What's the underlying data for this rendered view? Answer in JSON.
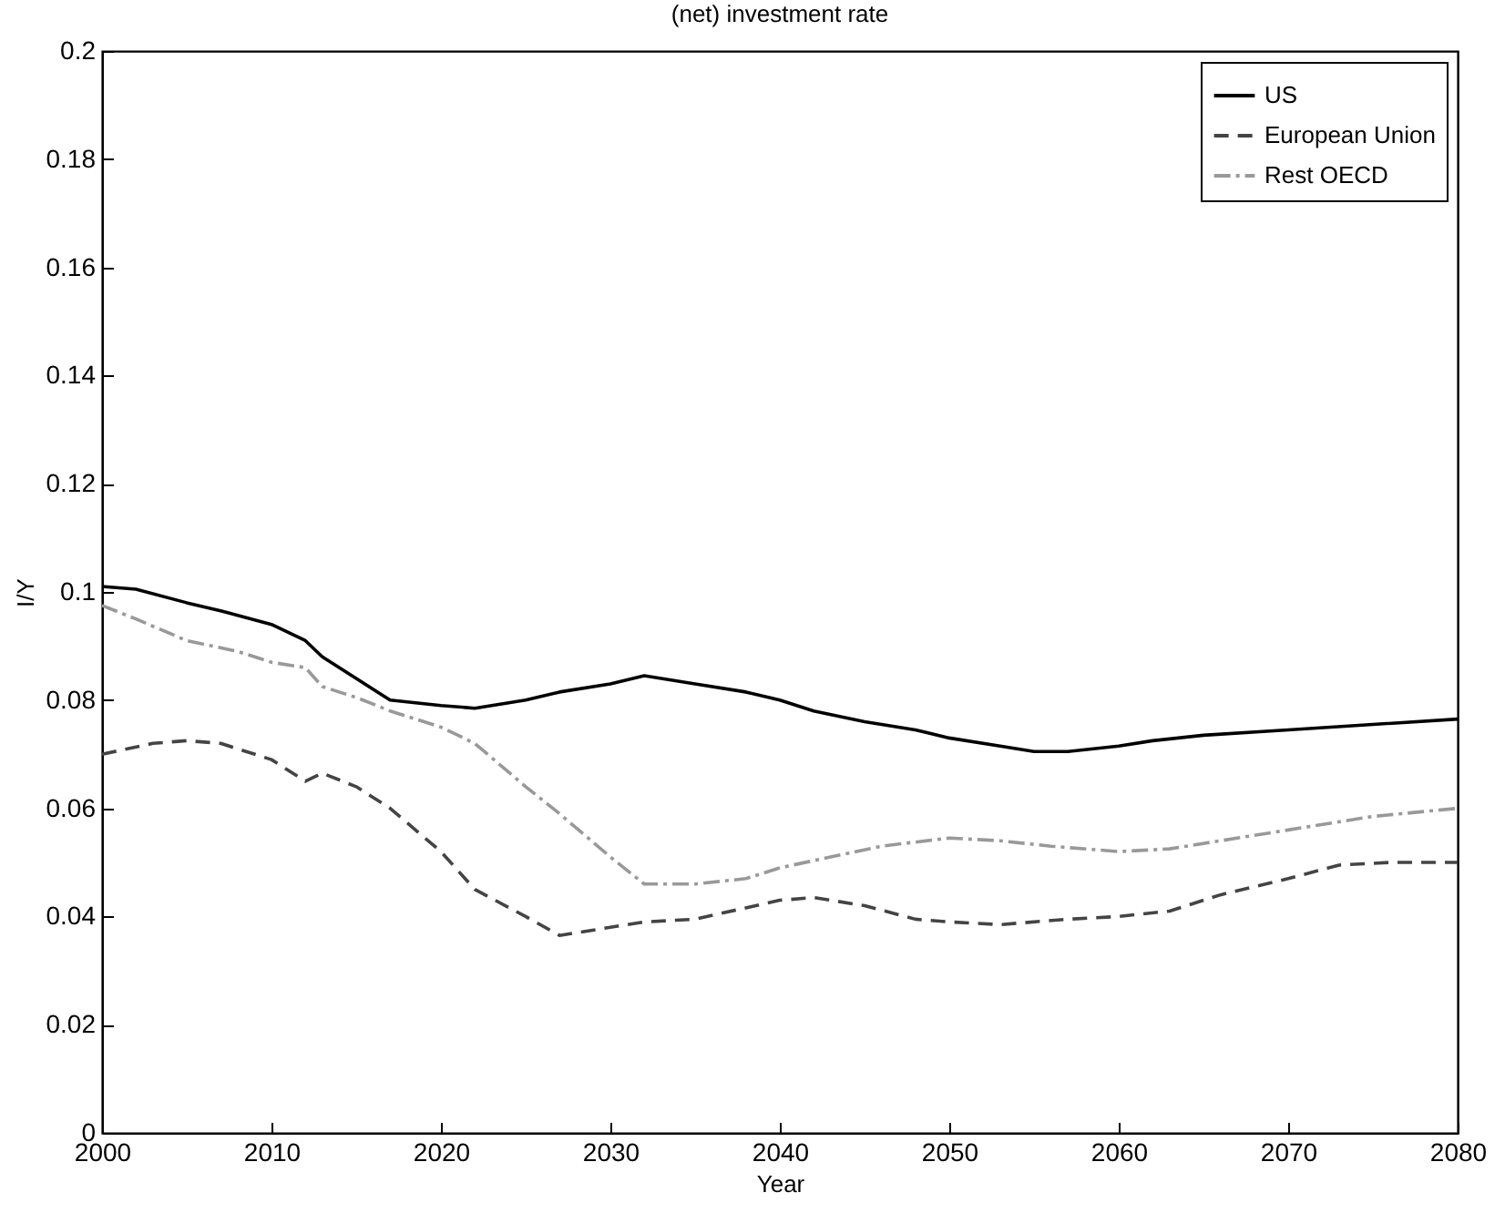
{
  "chart_data": {
    "type": "line",
    "title": "(net) investment rate",
    "xlabel": "Year",
    "ylabel": "I/Y",
    "xlim": [
      2000,
      2080
    ],
    "xticks": [
      2000,
      2010,
      2020,
      2030,
      2040,
      2050,
      2060,
      2070,
      2080
    ],
    "ylim": [
      0,
      0.2
    ],
    "yticks": [
      0,
      0.02,
      0.04,
      0.06,
      0.08,
      0.1,
      0.12,
      0.14,
      0.16,
      0.18,
      0.2
    ],
    "grid": false,
    "legend": "top right",
    "series": [
      {
        "name": "US",
        "color": "#000000",
        "line_style": "solid",
        "x": [
          2000,
          2002,
          2005,
          2007,
          2010,
          2012,
          2013,
          2015,
          2017,
          2020,
          2022,
          2025,
          2027,
          2030,
          2032,
          2035,
          2038,
          2040,
          2042,
          2045,
          2048,
          2050,
          2053,
          2055,
          2057,
          2060,
          2062,
          2065,
          2070,
          2075,
          2080
        ],
        "values": [
          0.101,
          0.1005,
          0.098,
          0.0965,
          0.094,
          0.091,
          0.088,
          0.084,
          0.08,
          0.079,
          0.0785,
          0.08,
          0.0815,
          0.083,
          0.0845,
          0.083,
          0.0815,
          0.08,
          0.078,
          0.076,
          0.0745,
          0.073,
          0.0715,
          0.0705,
          0.0705,
          0.0715,
          0.0725,
          0.0735,
          0.0745,
          0.0755,
          0.0765
        ]
      },
      {
        "name": "European Union",
        "color": "#444444",
        "line_style": "dashed",
        "x": [
          2000,
          2003,
          2005,
          2007,
          2010,
          2012,
          2013,
          2015,
          2017,
          2020,
          2022,
          2025,
          2027,
          2030,
          2032,
          2035,
          2040,
          2042,
          2045,
          2048,
          2050,
          2053,
          2057,
          2060,
          2063,
          2066,
          2070,
          2073,
          2076,
          2080
        ],
        "values": [
          0.07,
          0.072,
          0.0725,
          0.072,
          0.069,
          0.065,
          0.0665,
          0.064,
          0.06,
          0.052,
          0.045,
          0.04,
          0.0365,
          0.038,
          0.039,
          0.0395,
          0.043,
          0.0435,
          0.042,
          0.0395,
          0.039,
          0.0385,
          0.0395,
          0.04,
          0.041,
          0.044,
          0.047,
          0.0495,
          0.05,
          0.05
        ]
      },
      {
        "name": "Rest OECD",
        "color": "#999999",
        "line_style": "dashdot",
        "x": [
          2000,
          2002,
          2005,
          2008,
          2010,
          2012,
          2013,
          2015,
          2017,
          2020,
          2022,
          2025,
          2027,
          2030,
          2032,
          2035,
          2038,
          2040,
          2043,
          2046,
          2050,
          2053,
          2056,
          2060,
          2063,
          2066,
          2070,
          2075,
          2080
        ],
        "values": [
          0.0975,
          0.095,
          0.091,
          0.089,
          0.087,
          0.086,
          0.0825,
          0.0805,
          0.078,
          0.075,
          0.072,
          0.064,
          0.059,
          0.051,
          0.046,
          0.046,
          0.047,
          0.049,
          0.051,
          0.053,
          0.0545,
          0.054,
          0.053,
          0.052,
          0.0525,
          0.054,
          0.056,
          0.0585,
          0.06
        ]
      }
    ]
  }
}
